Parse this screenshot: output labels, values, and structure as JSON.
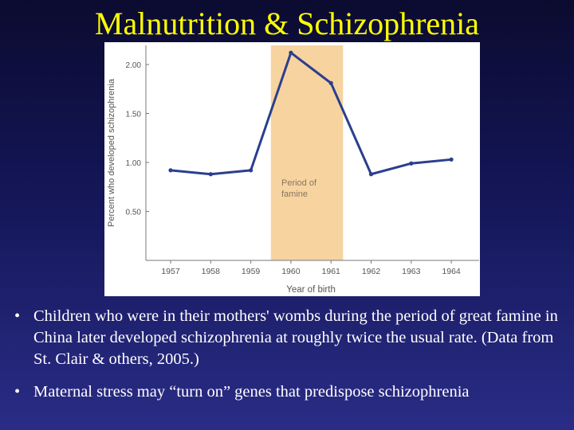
{
  "slide": {
    "title": "Malnutrition & Schizophrenia",
    "bullets": [
      "Children who were in their mothers' wombs during the period of great famine in China later developed schizophrenia at roughly twice the usual rate. (Data from St. Clair & others, 2005.)",
      "Maternal stress may “turn on” genes that predispose schizophrenia"
    ],
    "bullet_glyph": "•"
  },
  "colors": {
    "background": "#141658",
    "title": "#ffff00",
    "bullet_text": "#ffffff",
    "line": "#2b3f8e",
    "famine_band": "#f7d3a0"
  },
  "chart_data": {
    "type": "line",
    "x": [
      1957,
      1958,
      1959,
      1960,
      1961,
      1962,
      1963,
      1964
    ],
    "categories": [
      "1957",
      "1958",
      "1959",
      "1960",
      "1961",
      "1962",
      "1963",
      "1964"
    ],
    "values": [
      0.92,
      0.88,
      0.92,
      2.12,
      1.81,
      0.88,
      0.99,
      1.03
    ],
    "xlabel": "Year of birth",
    "ylabel": "Percent who developed schizophrenia",
    "yticks": [
      "0.50",
      "1.00",
      "1.50",
      "2.00"
    ],
    "ylim": [
      0.0,
      2.2
    ],
    "highlight": {
      "from": 1959.5,
      "to": 1961.3,
      "label_lines": [
        "Period of",
        "famine"
      ]
    },
    "grid": false
  }
}
